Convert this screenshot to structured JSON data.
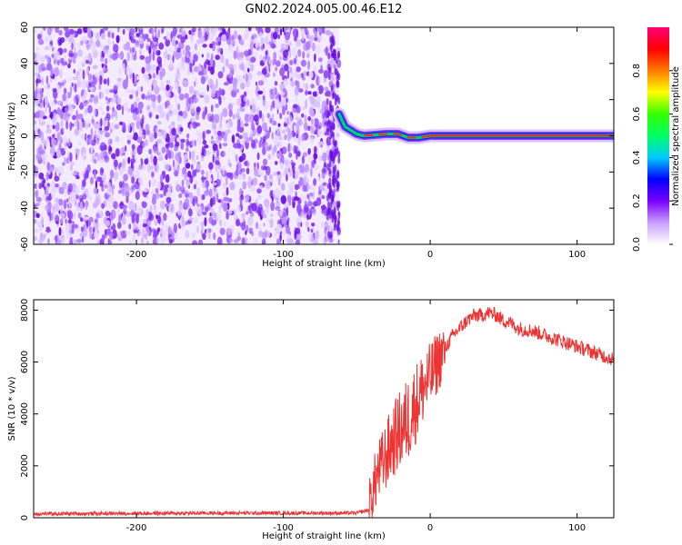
{
  "title": "GN02.2024.005.00.46.E12",
  "chart_data": [
    {
      "type": "heatmap",
      "xlabel": "Height of straight line (km)",
      "ylabel": "Frequency (Hz)",
      "xlim": [
        -270,
        125
      ],
      "ylim": [
        -60,
        60
      ],
      "x_ticks": [
        -200,
        -100,
        0,
        100
      ],
      "y_ticks": [
        -60,
        -40,
        -20,
        0,
        20,
        40,
        60
      ],
      "noise_region_x": [
        -270,
        -62
      ],
      "tonal_line": [
        {
          "x": -62,
          "y": 12
        },
        {
          "x": -58,
          "y": 5
        },
        {
          "x": -50,
          "y": 1
        },
        {
          "x": -45,
          "y": 0
        },
        {
          "x": -30,
          "y": 1
        },
        {
          "x": -22,
          "y": 1
        },
        {
          "x": -15,
          "y": -1
        },
        {
          "x": -8,
          "y": -1
        },
        {
          "x": 0,
          "y": 0
        },
        {
          "x": 125,
          "y": 0
        }
      ],
      "colorbar": {
        "label": "Normalized spectral amplitude",
        "range": [
          0,
          1
        ],
        "ticks": [
          "0.0",
          "0.2",
          "0.4",
          "0.6",
          "0.8"
        ],
        "colors": [
          "#ffffff",
          "#c8a0ff",
          "#7a00ff",
          "#0000ff",
          "#00ccff",
          "#00ff66",
          "#33ff00",
          "#ffff00",
          "#ff7a00",
          "#ff0000",
          "#ff0077"
        ]
      }
    },
    {
      "type": "line",
      "xlabel": "Height of straight line (km)",
      "ylabel": "SNR (10 * v/v)",
      "xlim": [
        -270,
        125
      ],
      "ylim": [
        0,
        8400
      ],
      "x_ticks": [
        -200,
        -100,
        0,
        100
      ],
      "y_ticks": [
        0,
        2000,
        4000,
        6000,
        8000
      ],
      "color": "#ee3333",
      "series": [
        {
          "x": [
            -270,
            -150,
            -50,
            -42,
            -38,
            -35,
            -30,
            -25,
            -20,
            -15,
            -10,
            -5,
            0,
            5,
            10,
            15,
            20,
            25,
            30,
            35,
            40,
            45,
            50,
            55,
            60,
            70,
            80,
            90,
            100,
            110,
            120,
            125
          ],
          "y": [
            150,
            180,
            180,
            300,
            1300,
            1800,
            2400,
            3000,
            3400,
            3800,
            4400,
            5000,
            5400,
            6000,
            6500,
            7000,
            7300,
            7600,
            7800,
            7800,
            7900,
            7800,
            7600,
            7500,
            7300,
            7200,
            7000,
            6800,
            6600,
            6400,
            6200,
            6100
          ]
        }
      ]
    }
  ]
}
